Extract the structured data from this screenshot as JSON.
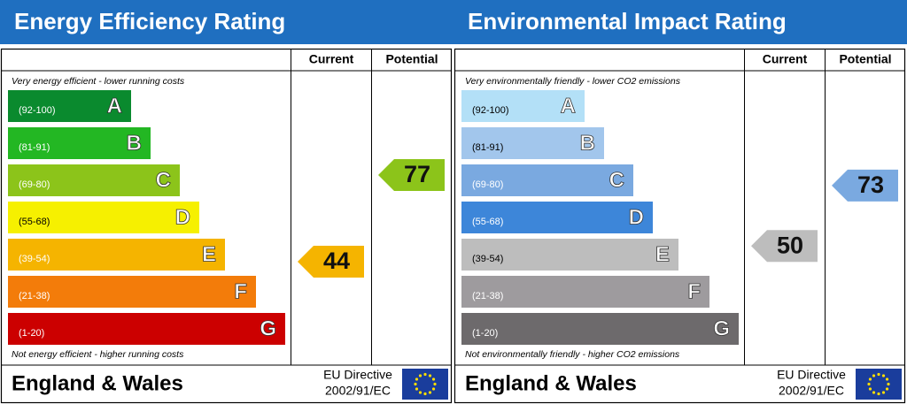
{
  "panels": [
    {
      "title": "Energy Efficiency Rating",
      "current_header": "Current",
      "potential_header": "Potential",
      "top_note": "Very energy efficient - lower running costs",
      "bottom_note": "Not energy efficient - higher running costs",
      "bands": [
        {
          "range": "(92-100)",
          "letter": "A"
        },
        {
          "range": "(81-91)",
          "letter": "B"
        },
        {
          "range": "(69-80)",
          "letter": "C"
        },
        {
          "range": "(55-68)",
          "letter": "D"
        },
        {
          "range": "(39-54)",
          "letter": "E"
        },
        {
          "range": "(21-38)",
          "letter": "F"
        },
        {
          "range": "(1-20)",
          "letter": "G"
        }
      ],
      "current": 44,
      "potential": 77,
      "region": "England & Wales",
      "directive_1": "EU Directive",
      "directive_2": "2002/91/EC"
    },
    {
      "title": "Environmental Impact Rating",
      "current_header": "Current",
      "potential_header": "Potential",
      "top_note": "Very environmentally friendly - lower CO2 emissions",
      "bottom_note": "Not environmentally friendly - higher CO2 emissions",
      "bands": [
        {
          "range": "(92-100)",
          "letter": "A"
        },
        {
          "range": "(81-91)",
          "letter": "B"
        },
        {
          "range": "(69-80)",
          "letter": "C"
        },
        {
          "range": "(55-68)",
          "letter": "D"
        },
        {
          "range": "(39-54)",
          "letter": "E"
        },
        {
          "range": "(21-38)",
          "letter": "F"
        },
        {
          "range": "(1-20)",
          "letter": "G"
        }
      ],
      "current": 50,
      "potential": 73,
      "region": "England & Wales",
      "directive_1": "EU Directive",
      "directive_2": "2002/91/EC"
    }
  ]
}
